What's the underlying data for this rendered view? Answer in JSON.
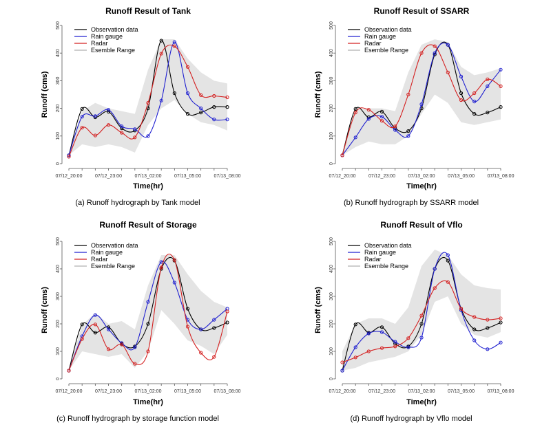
{
  "colors": {
    "observation": "#000000",
    "rain_gauge": "#2020d0",
    "radar": "#d42020",
    "ensemble": "#e4e4e4"
  },
  "legend": [
    "Observation data",
    "Rain gauge",
    "Radar",
    "Esemble Range"
  ],
  "chart_data": [
    {
      "type": "line",
      "title": "Runoff Result of Tank",
      "caption": "(a) Runoff hydrograph by Tank model",
      "xlabel": "Time(hr)",
      "ylabel": "Runoff (cms)",
      "xlim": [
        0,
        12
      ],
      "ylim": [
        0,
        500
      ],
      "x_tick_labels": [
        "07/12_20:00",
        "07/12_23:00",
        "07/13_02:00",
        "07/13_05:00",
        "07/13_08:00"
      ],
      "y_ticks": [
        0,
        100,
        200,
        300,
        400,
        500
      ],
      "x": [
        0,
        1,
        2,
        3,
        4,
        5,
        6,
        7,
        8,
        9,
        10,
        11,
        12
      ],
      "series": [
        {
          "name": "Observation data",
          "values": [
            30,
            198,
            168,
            188,
            128,
            120,
            200,
            445,
            255,
            180,
            185,
            205,
            205
          ]
        },
        {
          "name": "Rain gauge",
          "values": [
            30,
            170,
            172,
            195,
            135,
            125,
            100,
            228,
            440,
            255,
            200,
            160,
            160
          ]
        },
        {
          "name": "Radar",
          "values": [
            25,
            130,
            102,
            140,
            112,
            95,
            220,
            398,
            425,
            350,
            248,
            245,
            240
          ]
        }
      ],
      "ensemble": {
        "upper": [
          40,
          190,
          220,
          200,
          190,
          180,
          340,
          450,
          450,
          380,
          330,
          300,
          290
        ],
        "lower": [
          30,
          70,
          60,
          70,
          60,
          40,
          140,
          200,
          230,
          180,
          150,
          140,
          120
        ]
      }
    },
    {
      "type": "line",
      "title": "Runoff Result of SSARR",
      "caption": "(b) Runoff hydrograph by SSARR model",
      "xlabel": "Time(hr)",
      "ylabel": "Runoff (cms)",
      "xlim": [
        0,
        12
      ],
      "ylim": [
        0,
        500
      ],
      "x_tick_labels": [
        "07/12_20:00",
        "07/12_23:00",
        "07/13_02:00",
        "07/13_05:00",
        "07/13_08:00"
      ],
      "y_ticks": [
        0,
        100,
        200,
        300,
        400,
        500
      ],
      "x": [
        0,
        1,
        2,
        3,
        4,
        5,
        6,
        7,
        8,
        9,
        10,
        11,
        12
      ],
      "series": [
        {
          "name": "Observation data",
          "values": [
            30,
            198,
            168,
            188,
            128,
            118,
            200,
            395,
            430,
            255,
            180,
            185,
            205
          ]
        },
        {
          "name": "Rain gauge",
          "values": [
            30,
            95,
            162,
            170,
            122,
            100,
            215,
            400,
            430,
            315,
            225,
            280,
            340
          ]
        },
        {
          "name": "Radar",
          "values": [
            30,
            185,
            195,
            155,
            135,
            250,
            400,
            425,
            330,
            230,
            255,
            305,
            280
          ]
        }
      ],
      "ensemble": {
        "upper": [
          40,
          195,
          200,
          200,
          190,
          330,
          430,
          450,
          440,
          350,
          320,
          330,
          345
        ],
        "lower": [
          30,
          60,
          80,
          70,
          70,
          100,
          180,
          250,
          220,
          150,
          140,
          150,
          160
        ]
      }
    },
    {
      "type": "line",
      "title": "Runoff Result of Storage",
      "caption": "(c) Runoff hydrograph by storage function model",
      "xlabel": "Time(hr)",
      "ylabel": "Runoff (cms)",
      "xlim": [
        0,
        12
      ],
      "ylim": [
        0,
        500
      ],
      "x_tick_labels": [
        "07/12_20:00",
        "07/12_23:00",
        "07/13_02:00",
        "07/13_05:00",
        "07/13_08:00"
      ],
      "y_ticks": [
        0,
        100,
        200,
        300,
        400,
        500
      ],
      "x": [
        0,
        1,
        2,
        3,
        4,
        5,
        6,
        7,
        8,
        9,
        10,
        11,
        12
      ],
      "series": [
        {
          "name": "Observation data",
          "values": [
            30,
            198,
            168,
            188,
            128,
            118,
            200,
            400,
            430,
            255,
            180,
            185,
            205
          ]
        },
        {
          "name": "Rain gauge",
          "values": [
            30,
            155,
            232,
            180,
            130,
            115,
            280,
            425,
            350,
            215,
            180,
            215,
            255
          ]
        },
        {
          "name": "Radar",
          "values": [
            30,
            145,
            198,
            108,
            125,
            55,
            100,
            405,
            432,
            190,
            95,
            80,
            245
          ]
        }
      ],
      "ensemble": {
        "upper": [
          40,
          195,
          240,
          200,
          210,
          180,
          340,
          450,
          450,
          380,
          320,
          280,
          260
        ],
        "lower": [
          30,
          100,
          90,
          80,
          90,
          40,
          100,
          250,
          200,
          140,
          120,
          90,
          160
        ]
      }
    },
    {
      "type": "line",
      "title": "Runoff Result of Vflo",
      "caption": "(d) Runoff hydrograph by Vflo model",
      "xlabel": "Time(hr)",
      "ylabel": "Runoff (cms)",
      "xlim": [
        0,
        12
      ],
      "ylim": [
        0,
        500
      ],
      "x_tick_labels": [
        "07/12_20:00",
        "07/12_23:00",
        "07/13_02:00",
        "07/13_05:00",
        "07/13_08:00"
      ],
      "y_ticks": [
        0,
        100,
        200,
        300,
        400,
        500
      ],
      "x": [
        0,
        1,
        2,
        3,
        4,
        5,
        6,
        7,
        8,
        9,
        10,
        11,
        12
      ],
      "series": [
        {
          "name": "Observation data",
          "values": [
            30,
            198,
            168,
            188,
            128,
            118,
            200,
            400,
            430,
            255,
            180,
            185,
            205
          ]
        },
        {
          "name": "Rain gauge",
          "values": [
            30,
            115,
            165,
            170,
            135,
            115,
            150,
            400,
            450,
            250,
            140,
            108,
            132
          ]
        },
        {
          "name": "Radar",
          "values": [
            60,
            78,
            100,
            112,
            118,
            148,
            230,
            330,
            352,
            255,
            225,
            215,
            220
          ]
        }
      ],
      "ensemble": {
        "upper": [
          100,
          200,
          220,
          220,
          200,
          260,
          410,
          470,
          450,
          380,
          340,
          330,
          325
        ],
        "lower": [
          30,
          40,
          60,
          70,
          80,
          100,
          160,
          280,
          300,
          200,
          160,
          150,
          170
        ]
      }
    }
  ]
}
